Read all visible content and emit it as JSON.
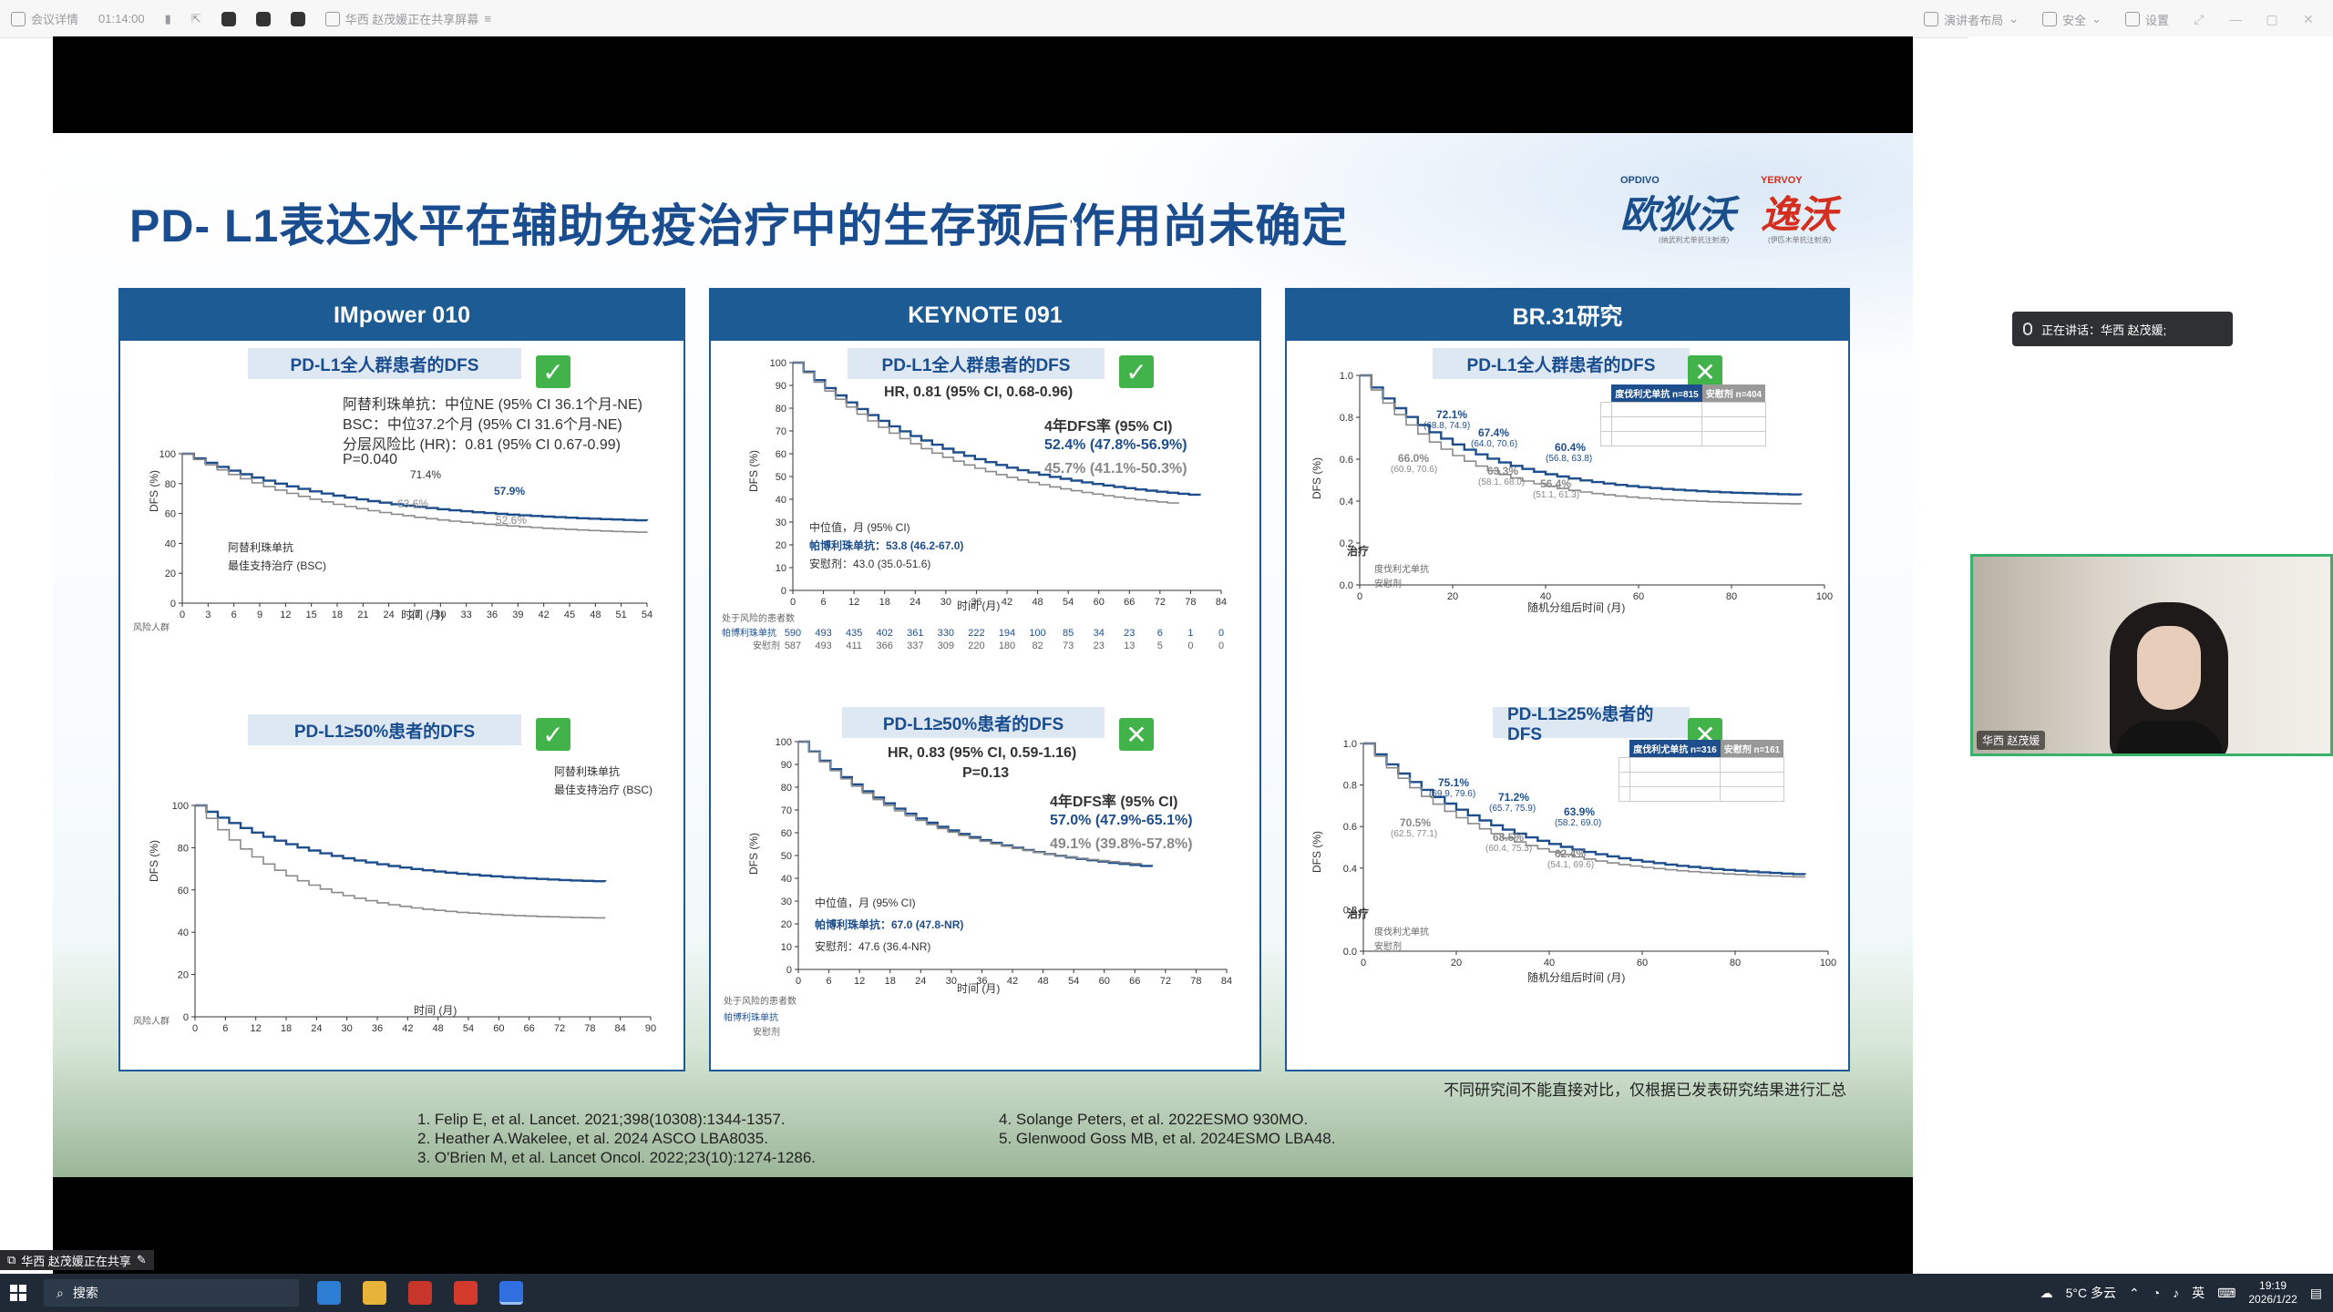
{
  "topbar": {
    "meeting_details": "会议详情",
    "timer": "01:14:00",
    "sharing_text": "华西 赵茂媛正在共享屏幕",
    "layout": "演讲者布局",
    "security": "安全",
    "settings": "设置"
  },
  "slide": {
    "title": "PD- L1表达水平在辅助免疫治疗中的生存预后作用尚未确定",
    "logo1": "欧狄沃",
    "logo1_brand": "OPDIVO",
    "logo1_sub": "(纳武利尤单抗注射液)",
    "logo2": "逸沃",
    "logo2_brand": "YERVOY",
    "logo2_sub": "(伊匹木单抗注射液)",
    "disclaimer": "不同研究间不能直接对比，仅根据已发表研究结果进行汇总",
    "refs_left": [
      "1.  Felip E, et al. Lancet. 2021;398(10308):1344-1357.",
      "2.  Heather A.Wakelee, et al. 2024 ASCO LBA8035.",
      "3.  O'Brien M, et al. Lancet Oncol. 2022;23(10):1274-1286."
    ],
    "refs_right": [
      "4.  Solange Peters, et al. 2022ESMO 930MO.",
      "5.  Glenwood Goss MB, et al. 2024ESMO LBA48."
    ]
  },
  "panels": [
    {
      "title": "IMpower 010",
      "tag_all": "PD-L1全人群患者的DFS",
      "tag_sub": "PD-L1≥50%患者的DFS",
      "stats": [
        "阿替利珠单抗：中位NE (95% CI 36.1个月-NE)",
        "BSC：中位37.2个月 (95% CI 31.6个月-NE)",
        "分层风险比 (HR)：0.81 (95% CI 0.67-0.99)",
        "P=0.040"
      ],
      "lab1": "71.4%",
      "lab2": "57.9%",
      "lab3": "63.6%",
      "lab4": "52.6%",
      "legend1": "阿替利珠单抗",
      "legend2": "最佳支持治疗 (BSC)",
      "xlabel": "时间 (月)",
      "ylabel": "DFS (%)",
      "risk_title": "风险人群"
    },
    {
      "title": "KEYNOTE 091",
      "tag_all": "PD-L1全人群患者的DFS",
      "tag_sub": "PD-L1≥50%患者的DFS",
      "hr1": "HR, 0.81 (95% CI, 0.68-0.96)",
      "rate_title1": "4年DFS率 (95% CI)",
      "rate_a1": "52.4% (47.8%-56.9%)",
      "rate_b1": "45.7% (41.1%-50.3%)",
      "med_title": "中位值，月 (95% CI)",
      "med_a1": "帕博利珠单抗：53.8 (46.2-67.0)",
      "med_b1": "安慰剂：43.0 (35.0-51.6)",
      "hr2": "HR, 0.83 (95% CI, 0.59-1.16)",
      "p2": "P=0.13",
      "rate_title2": "4年DFS率 (95% CI)",
      "rate_a2": "57.0% (47.9%-65.1%)",
      "rate_b2": "49.1% (39.8%-57.8%)",
      "med_a2": "帕博利珠单抗：67.0 (47.8-NR)",
      "med_b2": "安慰剂：47.6 (36.4-NR)",
      "xlabel": "时间 (月)",
      "ylabel": "DFS (%)",
      "risk_title": "处于风险的患者数",
      "risk_a": "帕博利珠单抗",
      "risk_b": "安慰剂",
      "risk_a_vals": [
        "590",
        "493",
        "435",
        "402",
        "361",
        "330",
        "222",
        "194",
        "100",
        "85",
        "34",
        "23",
        "6",
        "1",
        "0"
      ],
      "risk_b_vals": [
        "587",
        "493",
        "411",
        "366",
        "337",
        "309",
        "220",
        "180",
        "82",
        "73",
        "23",
        "13",
        "5",
        "0",
        "0"
      ]
    },
    {
      "title": "BR.31研究",
      "tag_all": "PD-L1全人群患者的DFS",
      "tag_sub": "PD-L1≥25%患者的DFS",
      "lab_a": "72.1%",
      "lab_a_ci": "(68.8, 74.9)",
      "lab_b": "67.4%",
      "lab_b_ci": "(64.0, 70.6)",
      "lab_c": "60.4%",
      "lab_c_ci": "(56.8, 63.8)",
      "lab_d": "66.0%",
      "lab_d_ci": "(60.9, 70.6)",
      "lab_e": "63.3%",
      "lab_e_ci": "(58.1, 68.0)",
      "lab_f": "56.4%",
      "lab_f_ci": "(51.1, 61.3)",
      "lab2_a": "75.1%",
      "lab2_a_ci": "(69.9, 79.6)",
      "lab2_b": "71.2%",
      "lab2_b_ci": "(65.7, 75.9)",
      "lab2_c": "63.9%",
      "lab2_c_ci": "(58.2, 69.0)",
      "lab2_d": "70.5%",
      "lab2_d_ci": "(62.5, 77.1)",
      "lab2_e": "68.5%",
      "lab2_e_ci": "(60.4, 75.3)",
      "lab2_f": "62.4%",
      "lab2_f_ci": "(54.1, 69.6)",
      "treat_title": "治疗",
      "treat_a": "度伐利尤单抗",
      "treat_b": "安慰剂",
      "xlabel": "随机分组后时间 (月)",
      "ylabel": "DFS (%)",
      "table1_head_a": "度伐利尤单抗 n=815",
      "table1_head_b": "安慰剂 n=404",
      "table2_head_a": "度伐利尤单抗 n=316",
      "table2_head_b": "安慰剂 n=161"
    }
  ],
  "speaking": "正在讲话：华西 赵茂媛;",
  "video_name": "华西 赵茂媛",
  "share_indicator": "华西 赵茂媛正在共享",
  "taskbar": {
    "search": "搜索",
    "weather": "5°C 多云",
    "ime": "英",
    "time": "19:19",
    "date": "2026/1/22"
  },
  "colors": {
    "blue_header": "#1c5b93",
    "series_a": "#1f4e8c",
    "series_b": "#8a8a8a",
    "check_green": "#42b34a",
    "speaker_green": "#38b16c"
  }
}
